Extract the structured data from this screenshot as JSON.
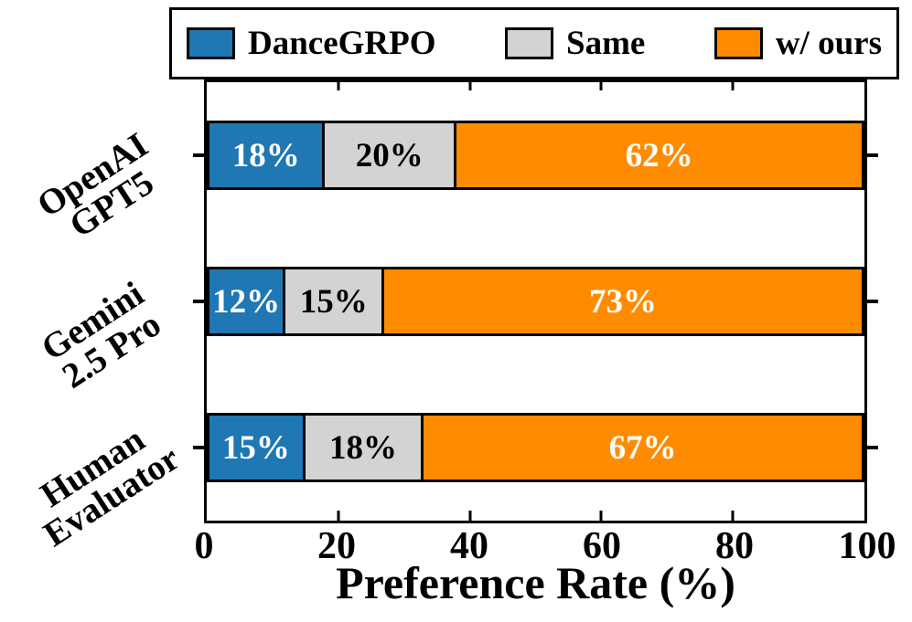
{
  "chart_data": {
    "type": "bar",
    "orientation": "horizontal",
    "stacked": true,
    "title": "",
    "xlabel": "Preference Rate (%)",
    "ylabel": "",
    "xlim": [
      0,
      100
    ],
    "xticks": [
      0,
      20,
      40,
      60,
      80,
      100
    ],
    "grid": false,
    "categories": [
      "OpenAI GPT5",
      "Gemini 2.5 Pro",
      "Human Evaluator"
    ],
    "category_lines": [
      [
        "OpenAI",
        "GPT5"
      ],
      [
        "Gemini",
        "2.5 Pro"
      ],
      [
        "Human",
        "Evaluator"
      ]
    ],
    "series": [
      {
        "name": "DanceGRPO",
        "color": "#1f77b4",
        "label_color": "#ffffff",
        "values": [
          18,
          12,
          15
        ]
      },
      {
        "name": "Same",
        "color": "#d3d3d3",
        "label_color": "#000000",
        "values": [
          20,
          15,
          18
        ]
      },
      {
        "name": "w/ ours",
        "color": "#ff8c00",
        "label_color": "#ffffff",
        "values": [
          62,
          73,
          67
        ]
      }
    ],
    "bar_labels": [
      [
        "18%",
        "20%",
        "62%"
      ],
      [
        "12%",
        "15%",
        "73%"
      ],
      [
        "15%",
        "18%",
        "67%"
      ]
    ],
    "legend": {
      "position": "top",
      "entries": [
        "DanceGRPO",
        "Same",
        "w/ ours"
      ]
    },
    "colors": {
      "axis": "#000000",
      "background": "#ffffff"
    }
  }
}
